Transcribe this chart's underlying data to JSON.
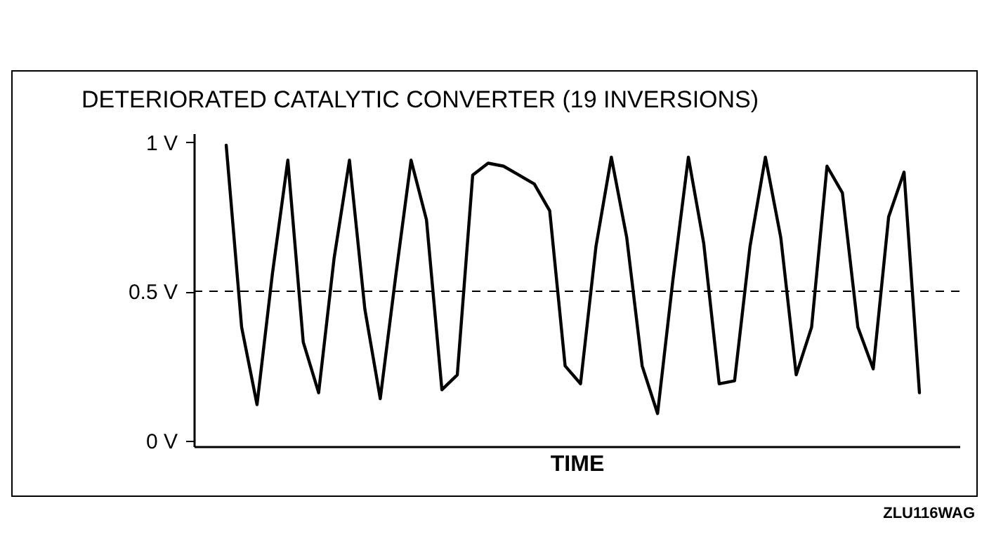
{
  "chart_data": {
    "type": "line",
    "title": "DETERIORATED CATALYTIC CONVERTER (19 INVERSIONS)",
    "xlabel": "TIME",
    "categories": [
      null,
      null,
      null,
      null,
      null,
      null,
      null,
      null,
      null,
      null,
      null,
      null,
      null,
      null,
      null,
      null,
      null,
      null,
      null,
      null,
      null,
      null,
      null,
      null,
      null,
      null,
      null,
      null,
      null,
      null,
      null,
      null,
      null,
      null,
      null,
      null,
      null,
      null,
      null,
      null,
      null,
      null,
      null,
      null,
      null,
      null
    ],
    "series": [
      {
        "color": "#000000",
        "values": [
          0.99,
          0.38,
          0.12,
          0.56,
          0.94,
          0.33,
          0.16,
          0.61,
          0.94,
          0.44,
          0.14,
          0.55,
          0.94,
          0.74,
          0.17,
          0.22,
          0.89,
          0.93,
          0.92,
          0.89,
          0.86,
          0.77,
          0.25,
          0.19,
          0.65,
          0.95,
          0.68,
          0.25,
          0.09,
          0.54,
          0.95,
          0.66,
          0.19,
          0.2,
          0.65,
          0.95,
          0.68,
          0.22,
          0.38,
          0.92,
          0.83,
          0.38,
          0.24,
          0.75,
          0.9,
          0.16
        ]
      }
    ],
    "ylim": [
      -0.02,
      1.03
    ],
    "yticks": [
      {
        "value": 0,
        "label": "0 V"
      },
      {
        "value": 0.5,
        "label": "0.5 V"
      },
      {
        "value": 1,
        "label": "1 V"
      }
    ],
    "tick_labels": "y",
    "ref_lines": [
      {
        "axis": "y",
        "value": 0.5,
        "color": "#000000",
        "line_style": "dashed"
      }
    ],
    "grid": false,
    "marker": "none",
    "line_style": "solid",
    "annotations": [
      "ZLU116WAG"
    ]
  }
}
